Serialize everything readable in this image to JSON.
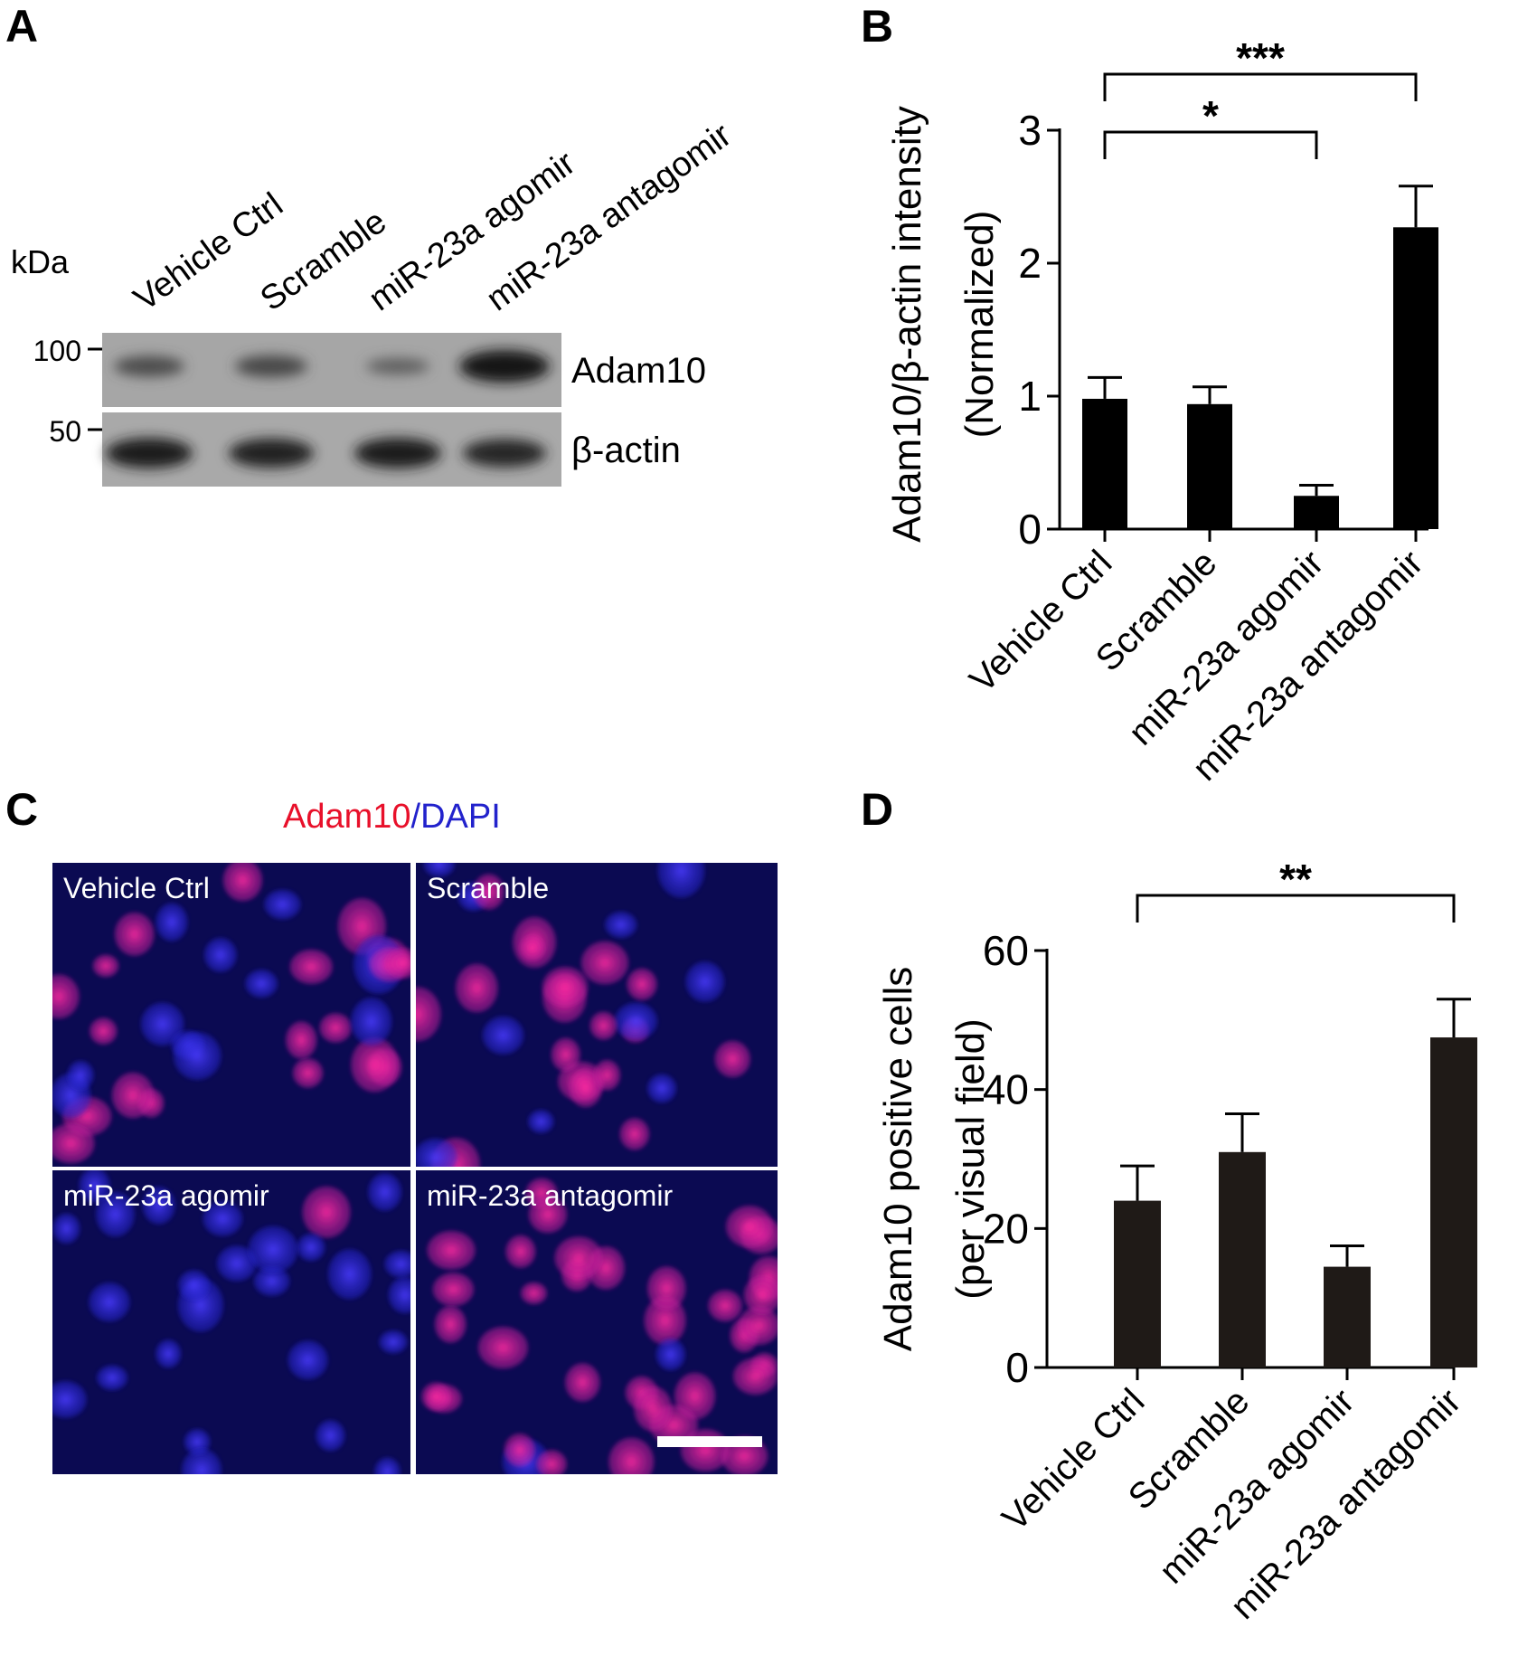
{
  "panels": {
    "A": "A",
    "B": "B",
    "C": "C",
    "D": "D"
  },
  "groups": [
    "Vehicle Ctrl",
    "Scramble",
    "miR-23a agomir",
    "miR-23a antagomir"
  ],
  "blot": {
    "unit_label": "kDa",
    "markers": [
      "100",
      "50"
    ],
    "bands": [
      {
        "name": "Adam10",
        "intensity": [
          0.45,
          0.5,
          0.25,
          1.0
        ]
      },
      {
        "name": "β-actin",
        "intensity": [
          0.9,
          0.85,
          0.9,
          0.8
        ]
      }
    ]
  },
  "immuno": {
    "title_red": "Adam10",
    "title_sep": "/",
    "title_blue": "DAPI",
    "colors": {
      "red": "#e8102a",
      "blue": "#2222cc",
      "background": "#0b0a52"
    },
    "panels": [
      "Vehicle Ctrl",
      "Scramble",
      "miR-23a agomir",
      "miR-23a antagomir"
    ]
  },
  "chart_data": [
    {
      "type": "bar",
      "panel": "B",
      "categories": [
        "Vehicle Ctrl",
        "Scramble",
        "miR-23a agomir",
        "miR-23a antagomir"
      ],
      "values": [
        0.98,
        0.94,
        0.25,
        2.27
      ],
      "errors": [
        0.16,
        0.13,
        0.08,
        0.31
      ],
      "ylabel_line1": "Adam10/β-actin intensity",
      "ylabel_line2": "(Normalized)",
      "ylim": [
        0,
        3
      ],
      "yticks": [
        0,
        1,
        2,
        3
      ],
      "ytick_labels": [
        "0",
        "1",
        "2",
        "3"
      ],
      "bar_color": "#000000",
      "significance": [
        {
          "from": 0,
          "to": 2,
          "label": "*"
        },
        {
          "from": 0,
          "to": 3,
          "label": "***"
        }
      ]
    },
    {
      "type": "bar",
      "panel": "D",
      "categories": [
        "Vehicle Ctrl",
        "Scramble",
        "miR-23a agomir",
        "miR-23a antagomir"
      ],
      "values": [
        24,
        31,
        14.5,
        47.5
      ],
      "errors": [
        5,
        5.5,
        3,
        5.5
      ],
      "ylabel_line1": "Adam10 positive cells",
      "ylabel_line2": "(per visual field)",
      "ylim": [
        0,
        60
      ],
      "yticks": [
        0,
        20,
        40,
        60
      ],
      "ytick_labels": [
        "0",
        "20",
        "40",
        "60"
      ],
      "bar_color": "#1f1a17",
      "significance": [
        {
          "from": 0,
          "to": 3,
          "label": "**"
        }
      ]
    }
  ]
}
